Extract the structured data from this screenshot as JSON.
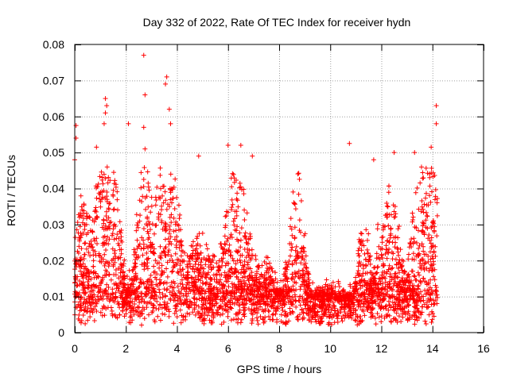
{
  "chart_data": {
    "type": "scatter",
    "title": "Day 332 of 2022, Rate Of TEC Index for receiver hydn",
    "xlabel": "GPS time / hours",
    "ylabel": "ROTI / TECUs",
    "xlim": [
      0,
      16
    ],
    "ylim": [
      0,
      0.08
    ],
    "xticks": [
      0,
      2,
      4,
      6,
      8,
      10,
      12,
      14,
      16
    ],
    "yticks": [
      0,
      0.01,
      0.02,
      0.03,
      0.04,
      0.05,
      0.06,
      0.07,
      0.08
    ],
    "ytick_labels": [
      "0",
      "0.01",
      "0.02",
      "0.03",
      "0.04",
      "0.05",
      "0.06",
      "0.07",
      "0.08"
    ],
    "grid": true,
    "marker": "+",
    "color": "#ff0000",
    "series": [
      {
        "name": "ROTI",
        "x_range": [
          0.0,
          14.2
        ],
        "baseline_range": [
          0.002,
          0.012
        ],
        "dense_upper_envelope": 0.04,
        "notable_points": [
          {
            "x": 2.7,
            "y": 0.077
          },
          {
            "x": 3.6,
            "y": 0.071
          },
          {
            "x": 3.55,
            "y": 0.069
          },
          {
            "x": 2.75,
            "y": 0.066
          },
          {
            "x": 1.2,
            "y": 0.065
          },
          {
            "x": 1.25,
            "y": 0.063
          },
          {
            "x": 1.2,
            "y": 0.061
          },
          {
            "x": 1.15,
            "y": 0.058
          },
          {
            "x": 14.15,
            "y": 0.063
          },
          {
            "x": 14.15,
            "y": 0.058
          },
          {
            "x": 2.7,
            "y": 0.057
          },
          {
            "x": 0.05,
            "y": 0.0575
          },
          {
            "x": 0.05,
            "y": 0.054
          },
          {
            "x": 3.7,
            "y": 0.062
          },
          {
            "x": 3.75,
            "y": 0.058
          },
          {
            "x": 2.1,
            "y": 0.058
          },
          {
            "x": 10.75,
            "y": 0.0525
          },
          {
            "x": 6.0,
            "y": 0.052
          },
          {
            "x": 6.5,
            "y": 0.052
          },
          {
            "x": 0.85,
            "y": 0.0515
          },
          {
            "x": 2.75,
            "y": 0.051
          },
          {
            "x": 13.95,
            "y": 0.0515
          },
          {
            "x": 12.5,
            "y": 0.05
          },
          {
            "x": 13.3,
            "y": 0.05
          },
          {
            "x": 4.85,
            "y": 0.049
          },
          {
            "x": 6.95,
            "y": 0.049
          },
          {
            "x": 11.7,
            "y": 0.048
          },
          {
            "x": 0.0,
            "y": 0.048
          }
        ]
      }
    ]
  }
}
